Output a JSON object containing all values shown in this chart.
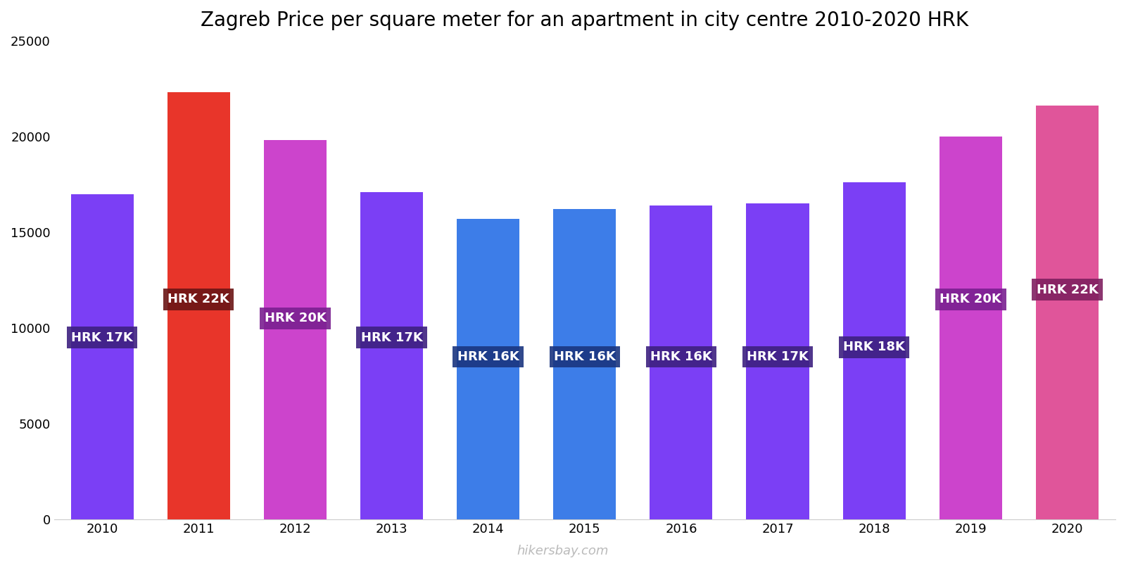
{
  "title": "Zagreb Price per square meter for an apartment in city centre 2010-2020 HRK",
  "years": [
    2010,
    2011,
    2012,
    2013,
    2014,
    2015,
    2016,
    2017,
    2018,
    2019,
    2020
  ],
  "values": [
    17000,
    22300,
    19800,
    17100,
    15700,
    16200,
    16400,
    16500,
    17600,
    20000,
    21600
  ],
  "labels": [
    "HRK 17K",
    "HRK 22K",
    "HRK 20K",
    "HRK 17K",
    "HRK 16K",
    "HRK 16K",
    "HRK 16K",
    "HRK 17K",
    "HRK 18K",
    "HRK 20K",
    "HRK 22K"
  ],
  "bar_colors": [
    "#7b3ff5",
    "#e8352a",
    "#cc44cc",
    "#7b3ff5",
    "#3d7de8",
    "#3d7de8",
    "#7b3ff5",
    "#7b3ff5",
    "#7b3ff5",
    "#cc44cc",
    "#e0559a"
  ],
  "label_bg_colors": [
    "#3d2080",
    "#6b1515",
    "#7a2090",
    "#3d2080",
    "#1a3580",
    "#1a3580",
    "#3d2080",
    "#3d2080",
    "#3d2080",
    "#7a2090",
    "#802060"
  ],
  "ylim": [
    0,
    25000
  ],
  "yticks": [
    0,
    5000,
    10000,
    15000,
    20000,
    25000
  ],
  "background_color": "#ffffff",
  "watermark": "hikersbay.com",
  "label_text_color": "#ffffff",
  "title_fontsize": 20,
  "label_fontsize": 13,
  "tick_fontsize": 13,
  "label_y_positions": [
    9500,
    11500,
    10500,
    9500,
    8500,
    8500,
    8500,
    8500,
    9000,
    11500,
    12000
  ]
}
